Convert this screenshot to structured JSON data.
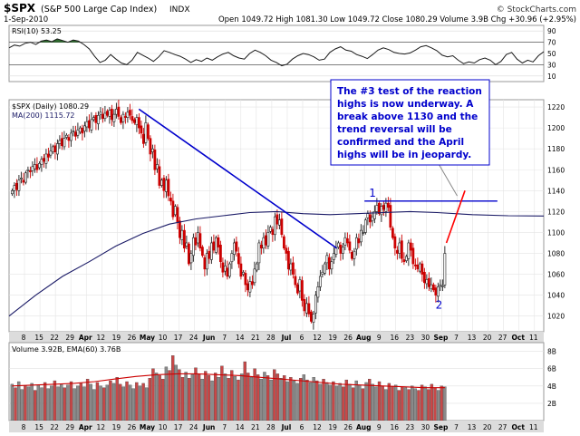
{
  "header": {
    "symbol": "$SPX",
    "name": "(S&P 500 Large Cap Index)",
    "exchange": "INDX",
    "source": "© StockCharts.com",
    "date": "1-Sep-2010",
    "quote": "Open 1049.72   High 1081.30   Low 1049.72   Close 1080.29   Volume 3.9B   Chg +30.96 (+2.95%)"
  },
  "colors": {
    "up": "#1a1a1a",
    "down": "#cc0000",
    "ma": "#1a1a66",
    "trendline": "#0000cc",
    "projection": "#ff0000",
    "rsi_fill": "#2e6b2e",
    "panel_bg": "#ffffff",
    "page_bg": "#ffffff",
    "axis_bg": "#dcdcdc",
    "vol_up": "#8a8a8a",
    "vol_down": "#c84848",
    "vol_ema": "#cc0000"
  },
  "chart_data": [
    {
      "type": "line",
      "title": "RSI(10) 53.25",
      "ylim": [
        0,
        100
      ],
      "yticks": [
        10,
        30,
        50,
        70,
        90
      ],
      "overbought": 70,
      "oversold": 30,
      "x": [
        0,
        10,
        20,
        30,
        40,
        50,
        60,
        70,
        80,
        90,
        100,
        110,
        120,
        130,
        140,
        150,
        160,
        170,
        180,
        190,
        200,
        210,
        220,
        230,
        240,
        250,
        260,
        270,
        280,
        290,
        300,
        310,
        320,
        330,
        340,
        350,
        360,
        370,
        380,
        390,
        400,
        410,
        420,
        430,
        440,
        450,
        460,
        470,
        480,
        490,
        500,
        510,
        520,
        530,
        540,
        550,
        560,
        570,
        580,
        590,
        600,
        610,
        620,
        630,
        640,
        650,
        660,
        670,
        680,
        690,
        700,
        710,
        720,
        730,
        740,
        750,
        760,
        770,
        780,
        790,
        800,
        810,
        820,
        830,
        840,
        850,
        860,
        870,
        880,
        890,
        900,
        910,
        920,
        930,
        940,
        950,
        960,
        970,
        980,
        990,
        1000
      ],
      "values": [
        60,
        65,
        63,
        68,
        70,
        66,
        72,
        74,
        71,
        76,
        73,
        70,
        74,
        72,
        66,
        58,
        45,
        34,
        38,
        48,
        40,
        33,
        30,
        38,
        52,
        47,
        42,
        36,
        44,
        55,
        52,
        48,
        45,
        40,
        34,
        39,
        36,
        42,
        38,
        44,
        49,
        52,
        46,
        42,
        40,
        50,
        56,
        52,
        46,
        38,
        34,
        28,
        31,
        40,
        46,
        50,
        48,
        44,
        38,
        40,
        52,
        58,
        62,
        56,
        54,
        48,
        45,
        41,
        48,
        56,
        60,
        57,
        52,
        50,
        49,
        51,
        56,
        62,
        64,
        60,
        55,
        47,
        44,
        46,
        38,
        32,
        35,
        33,
        39,
        42,
        38,
        30,
        36,
        48,
        52,
        40,
        33,
        38,
        35,
        46,
        53.25
      ]
    },
    {
      "type": "candlestick",
      "title": "$SPX (Daily) 1080.29",
      "ma_label": "MA(200) 1115.72",
      "ylim": [
        1005,
        1227
      ],
      "yticks": [
        1020,
        1040,
        1060,
        1080,
        1100,
        1120,
        1140,
        1160,
        1180,
        1200,
        1220
      ],
      "x_tick_labels": [
        "8",
        "15",
        "22",
        "29",
        "Apr",
        "12",
        "19",
        "26",
        "May",
        "10",
        "17",
        "24",
        "Jun",
        "7",
        "14",
        "21",
        "28",
        "Jul",
        "6",
        "12",
        "19",
        "26",
        "Aug",
        "9",
        "16",
        "23",
        "30",
        "Sep",
        "7",
        "13",
        "20",
        "27",
        "Oct",
        "11"
      ],
      "x_tick_pos": [
        10,
        20,
        30,
        40,
        50,
        60,
        70,
        80,
        90,
        100,
        110,
        120,
        130,
        140,
        150,
        160,
        170,
        180,
        190,
        200,
        210,
        220,
        230,
        240,
        250,
        260,
        270,
        280,
        290,
        300,
        310,
        320,
        330,
        340
      ],
      "x_end": 346,
      "closes": [
        1140,
        1145,
        1141,
        1150,
        1152,
        1148,
        1157,
        1160,
        1158,
        1163,
        1165,
        1160,
        1166,
        1170,
        1168,
        1175,
        1172,
        1178,
        1182,
        1177,
        1185,
        1188,
        1183,
        1190,
        1193,
        1188,
        1195,
        1197,
        1192,
        1198,
        1200,
        1195,
        1202,
        1206,
        1200,
        1208,
        1210,
        1205,
        1212,
        1215,
        1209,
        1214,
        1212,
        1217,
        1208,
        1213,
        1218,
        1211,
        1205,
        1213,
        1210,
        1215,
        1212,
        1207,
        1205,
        1210,
        1200,
        1195,
        1185,
        1205,
        1190,
        1175,
        1180,
        1160,
        1165,
        1145,
        1150,
        1140,
        1150,
        1135,
        1130,
        1115,
        1125,
        1110,
        1095,
        1102,
        1085,
        1090,
        1070,
        1080,
        1095,
        1088,
        1100,
        1085,
        1078,
        1065,
        1080,
        1075,
        1090,
        1083,
        1095,
        1086,
        1072,
        1062,
        1068,
        1058,
        1070,
        1080,
        1090,
        1082,
        1070,
        1058,
        1062,
        1050,
        1045,
        1053,
        1050,
        1065,
        1070,
        1090,
        1085,
        1095,
        1088,
        1100,
        1105,
        1098,
        1115,
        1108,
        1112,
        1098,
        1085,
        1080,
        1065,
        1070,
        1060,
        1050,
        1042,
        1055,
        1035,
        1025,
        1032,
        1022,
        1015,
        1022,
        1040,
        1048,
        1058,
        1062,
        1070,
        1078,
        1065,
        1072,
        1080,
        1085,
        1090,
        1080,
        1086,
        1095,
        1090,
        1083,
        1075,
        1082,
        1095,
        1090,
        1102,
        1100,
        1112,
        1118,
        1110,
        1115,
        1120,
        1126,
        1118,
        1125,
        1122,
        1128,
        1124,
        1105,
        1095,
        1085,
        1080,
        1090,
        1075,
        1072,
        1077,
        1090,
        1083,
        1070,
        1068,
        1065,
        1070,
        1060,
        1052,
        1055,
        1048,
        1050,
        1045,
        1040,
        1048,
        1050,
        1049,
        1080
      ],
      "ma200": [
        {
          "x": 0,
          "y": 1020
        },
        {
          "x": 30,
          "y": 1040
        },
        {
          "x": 60,
          "y": 1058
        },
        {
          "x": 90,
          "y": 1072
        },
        {
          "x": 120,
          "y": 1087
        },
        {
          "x": 150,
          "y": 1099
        },
        {
          "x": 180,
          "y": 1108
        },
        {
          "x": 210,
          "y": 1113
        },
        {
          "x": 240,
          "y": 1116
        },
        {
          "x": 270,
          "y": 1119
        },
        {
          "x": 300,
          "y": 1120
        },
        {
          "x": 330,
          "y": 1118
        },
        {
          "x": 360,
          "y": 1117
        },
        {
          "x": 390,
          "y": 1118
        },
        {
          "x": 420,
          "y": 1119
        },
        {
          "x": 450,
          "y": 1120
        },
        {
          "x": 480,
          "y": 1119
        },
        {
          "x": 520,
          "y": 1117
        },
        {
          "x": 560,
          "y": 1116
        },
        {
          "x": 600,
          "y": 1115.7
        }
      ],
      "trendline": [
        {
          "x": 84,
          "y": 1218
        },
        {
          "x": 212,
          "y": 1085
        }
      ],
      "resistance": [
        {
          "x": 230,
          "y": 1130
        },
        {
          "x": 316,
          "y": 1130
        }
      ],
      "projection": [
        {
          "x": 283,
          "y": 1090
        },
        {
          "x": 295,
          "y": 1140
        }
      ],
      "pointer": [
        {
          "x": 277,
          "y": 1168
        },
        {
          "x": 290,
          "y": 1135
        }
      ],
      "marks": [
        {
          "label": "1",
          "x": 233,
          "y": 1134
        },
        {
          "label": "2",
          "x": 276,
          "y": 1027
        }
      ],
      "annotation": [
        "The #3 test of the reaction",
        "highs is now underway. A",
        "break above 1130 and the",
        "trend reversal will be",
        "confirmed and the April",
        "highs will be in jeopardy."
      ]
    },
    {
      "type": "bar",
      "title": "Volume 3.92B, EMA(60) 3.76B",
      "ylim": [
        0,
        9
      ],
      "yticks": [
        2,
        4,
        6,
        8
      ],
      "ytick_labels": [
        "2B",
        "4B",
        "6B",
        "8B"
      ],
      "values": [
        4.2,
        3.8,
        4.5,
        3.6,
        4.0,
        3.9,
        4.3,
        3.5,
        4.1,
        3.8,
        4.4,
        3.7,
        4.0,
        4.6,
        3.9,
        4.2,
        3.8,
        4.1,
        4.5,
        3.7,
        4.0,
        4.3,
        3.9,
        4.8,
        4.2,
        3.6,
        4.4,
        4.0,
        3.8,
        4.1,
        4.6,
        4.3,
        5.0,
        4.2,
        3.9,
        4.5,
        4.1,
        3.7,
        4.4,
        4.0,
        4.3,
        3.8,
        4.9,
        6.0,
        5.5,
        5.2,
        4.8,
        6.2,
        5.8,
        7.5,
        6.4,
        5.9,
        5.0,
        5.6,
        4.9,
        5.3,
        6.1,
        5.4,
        4.8,
        5.7,
        5.2,
        4.6,
        5.5,
        5.0,
        6.3,
        5.4,
        4.9,
        5.8,
        5.1,
        4.7,
        5.4,
        6.8,
        5.5,
        5.0,
        6.0,
        5.3,
        4.8,
        5.6,
        5.2,
        4.7,
        5.9,
        5.4,
        4.9,
        5.2,
        4.5,
        5.0,
        4.6,
        4.3,
        4.9,
        5.3,
        4.7,
        4.4,
        5.0,
        4.6,
        4.2,
        4.8,
        4.4,
        4.1,
        4.5,
        4.0,
        4.3,
        3.9,
        4.7,
        4.2,
        3.8,
        4.6,
        4.1,
        3.7,
        4.4,
        4.8,
        4.2,
        3.9,
        4.5,
        4.0,
        3.6,
        4.3,
        3.9,
        4.1,
        3.5,
        3.9,
        3.8,
        3.6,
        4.0,
        3.7,
        3.5,
        4.1,
        3.9,
        3.6,
        4.2,
        3.8,
        3.5,
        4.0,
        3.9
      ],
      "up": [
        1,
        0,
        1,
        1,
        0,
        1,
        1,
        0,
        1,
        1,
        0,
        1,
        1,
        0,
        1,
        1,
        0,
        1,
        0,
        1,
        1,
        0,
        1,
        0,
        1,
        1,
        0,
        1,
        0,
        1,
        0,
        1,
        0,
        0,
        1,
        0,
        1,
        1,
        0,
        1,
        0,
        1,
        0,
        0,
        1,
        0,
        0,
        1,
        0,
        0,
        1,
        0,
        0,
        1,
        0,
        1,
        0,
        0,
        1,
        0,
        0,
        1,
        0,
        1,
        0,
        1,
        0,
        0,
        1,
        0,
        1,
        0,
        0,
        1,
        0,
        0,
        1,
        1,
        0,
        1,
        0,
        0,
        1,
        0,
        1,
        0,
        1,
        1,
        0,
        1,
        0,
        1,
        1,
        0,
        1,
        0,
        1,
        1,
        0,
        1,
        1,
        0,
        0,
        1,
        0,
        1,
        1,
        0,
        1,
        0,
        1,
        1,
        0,
        0,
        1,
        0,
        0,
        1,
        0,
        0,
        1,
        0,
        1,
        1,
        0,
        0,
        1,
        0,
        0,
        0,
        1,
        0,
        1,
        1
      ],
      "ema": [
        4.0,
        4.1,
        4.2,
        4.3,
        4.5,
        4.8,
        5.1,
        5.3,
        5.4,
        5.4,
        5.3,
        5.2,
        5.0,
        4.8,
        4.6,
        4.4,
        4.2,
        4.1,
        4.0,
        3.9,
        3.8,
        3.8
      ]
    }
  ]
}
